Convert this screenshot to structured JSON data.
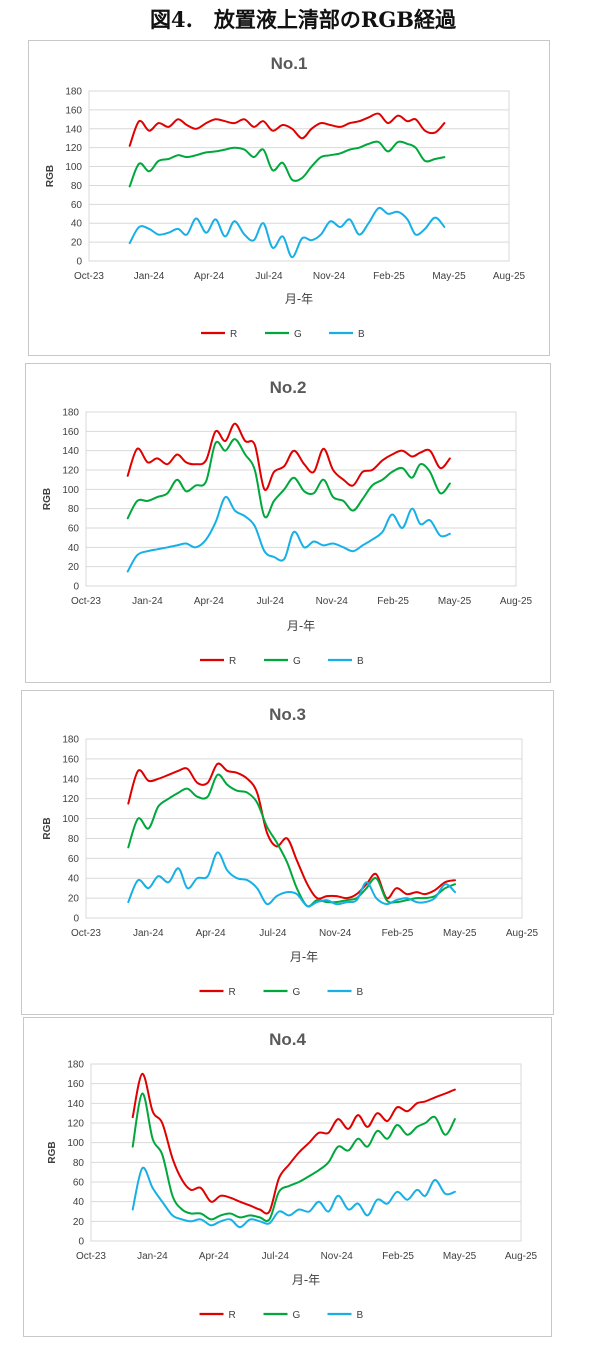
{
  "figure": {
    "title": "図4.　放置液上清部のRGB経過"
  },
  "colors": {
    "R": "#e00000",
    "G": "#00a83c",
    "B": "#17b0e6"
  },
  "chart_data": [
    {
      "type": "line",
      "title": "No.1",
      "xlabel": "月-年",
      "ylabel": "RGB",
      "ylim": [
        0,
        180
      ],
      "yticks": [
        0,
        20,
        40,
        60,
        80,
        100,
        120,
        140,
        160,
        180
      ],
      "xlim": [
        "2023-10-01",
        "2025-08-01"
      ],
      "xticks": [
        "Oct-23",
        "Jan-24",
        "Apr-24",
        "Jul-24",
        "Nov-24",
        "Feb-25",
        "May-25",
        "Aug-25"
      ],
      "grid": true,
      "legend": "bottom",
      "x": [
        "2023-12-05",
        "2023-12-20",
        "2024-01-05",
        "2024-01-20",
        "2024-02-05",
        "2024-02-20",
        "2024-03-05",
        "2024-03-20",
        "2024-04-05",
        "2024-04-20",
        "2024-05-05",
        "2024-05-20",
        "2024-06-05",
        "2024-06-20",
        "2024-07-05",
        "2024-07-20",
        "2024-08-05",
        "2024-08-20",
        "2024-09-05",
        "2024-09-20",
        "2024-10-05",
        "2024-10-20",
        "2024-11-05",
        "2024-11-20",
        "2024-12-05",
        "2024-12-20",
        "2025-01-05",
        "2025-01-20",
        "2025-02-05",
        "2025-02-20",
        "2025-03-05",
        "2025-03-20",
        "2025-04-05",
        "2025-04-20"
      ],
      "series": [
        {
          "name": "R",
          "values": [
            122,
            148,
            138,
            146,
            142,
            150,
            144,
            140,
            146,
            150,
            148,
            146,
            150,
            142,
            148,
            138,
            144,
            140,
            130,
            140,
            146,
            144,
            142,
            146,
            148,
            152,
            156,
            146,
            154,
            148,
            150,
            138,
            136,
            146
          ]
        },
        {
          "name": "G",
          "values": [
            79,
            103,
            95,
            106,
            108,
            112,
            110,
            112,
            115,
            116,
            118,
            120,
            118,
            110,
            118,
            96,
            104,
            86,
            88,
            100,
            110,
            112,
            114,
            118,
            120,
            124,
            126,
            116,
            126,
            124,
            120,
            106,
            108,
            110
          ]
        },
        {
          "name": "B",
          "values": [
            19,
            36,
            34,
            28,
            30,
            34,
            28,
            45,
            30,
            44,
            26,
            42,
            28,
            22,
            40,
            14,
            26,
            4,
            24,
            22,
            28,
            42,
            36,
            44,
            28,
            40,
            56,
            50,
            52,
            44,
            28,
            34,
            46,
            36
          ]
        }
      ]
    },
    {
      "type": "line",
      "title": "No.2",
      "xlabel": "月-年",
      "ylabel": "RGB",
      "ylim": [
        0,
        180
      ],
      "yticks": [
        0,
        20,
        40,
        60,
        80,
        100,
        120,
        140,
        160,
        180
      ],
      "xlim": [
        "2023-10-01",
        "2025-08-01"
      ],
      "xticks": [
        "Oct-23",
        "Jan-24",
        "Apr-24",
        "Jul-24",
        "Nov-24",
        "Feb-25",
        "May-25",
        "Aug-25"
      ],
      "grid": true,
      "legend": "bottom",
      "x": [
        "2023-12-05",
        "2023-12-20",
        "2024-01-05",
        "2024-01-20",
        "2024-02-05",
        "2024-02-20",
        "2024-03-05",
        "2024-03-20",
        "2024-04-05",
        "2024-04-20",
        "2024-05-05",
        "2024-05-20",
        "2024-06-05",
        "2024-06-20",
        "2024-07-05",
        "2024-07-20",
        "2024-08-05",
        "2024-08-20",
        "2024-09-05",
        "2024-09-20",
        "2024-10-05",
        "2024-10-20",
        "2024-11-05",
        "2024-11-20",
        "2024-12-05",
        "2024-12-20",
        "2025-01-05",
        "2025-01-20",
        "2025-02-05",
        "2025-02-20",
        "2025-03-05",
        "2025-03-20",
        "2025-04-05",
        "2025-04-20"
      ],
      "series": [
        {
          "name": "R",
          "values": [
            114,
            142,
            128,
            132,
            126,
            136,
            128,
            126,
            130,
            160,
            150,
            168,
            150,
            146,
            100,
            118,
            124,
            140,
            126,
            118,
            142,
            120,
            110,
            104,
            118,
            120,
            130,
            136,
            140,
            134,
            138,
            140,
            122,
            132
          ]
        },
        {
          "name": "G",
          "values": [
            70,
            88,
            88,
            92,
            96,
            110,
            98,
            104,
            108,
            148,
            140,
            152,
            136,
            120,
            72,
            88,
            100,
            112,
            98,
            96,
            110,
            92,
            88,
            78,
            90,
            104,
            110,
            118,
            122,
            112,
            126,
            118,
            96,
            106
          ]
        },
        {
          "name": "B",
          "values": [
            15,
            32,
            36,
            38,
            40,
            42,
            44,
            40,
            48,
            66,
            92,
            78,
            72,
            62,
            36,
            30,
            28,
            56,
            40,
            46,
            42,
            44,
            40,
            36,
            42,
            48,
            56,
            74,
            60,
            80,
            64,
            68,
            52,
            54
          ]
        }
      ]
    },
    {
      "type": "line",
      "title": "No.3",
      "xlabel": "月-年",
      "ylabel": "RGB",
      "ylim": [
        0,
        180
      ],
      "yticks": [
        0,
        20,
        40,
        60,
        80,
        100,
        120,
        140,
        160,
        180
      ],
      "xlim": [
        "2023-10-01",
        "2025-08-01"
      ],
      "xticks": [
        "Oct-23",
        "Jan-24",
        "Apr-24",
        "Jul-24",
        "Nov-24",
        "Feb-25",
        "May-25",
        "Aug-25"
      ],
      "grid": true,
      "legend": "bottom",
      "x": [
        "2023-12-05",
        "2023-12-20",
        "2024-01-05",
        "2024-01-20",
        "2024-02-05",
        "2024-02-20",
        "2024-03-05",
        "2024-03-20",
        "2024-04-05",
        "2024-04-20",
        "2024-05-05",
        "2024-05-20",
        "2024-06-05",
        "2024-06-20",
        "2024-07-05",
        "2024-07-20",
        "2024-08-05",
        "2024-08-20",
        "2024-09-05",
        "2024-09-20",
        "2024-10-05",
        "2024-10-20",
        "2024-11-05",
        "2024-11-20",
        "2024-12-05",
        "2024-12-20",
        "2025-01-05",
        "2025-01-20",
        "2025-02-05",
        "2025-02-20",
        "2025-03-05",
        "2025-03-20",
        "2025-04-05",
        "2025-04-20"
      ],
      "series": [
        {
          "name": "R",
          "values": [
            115,
            148,
            138,
            140,
            144,
            148,
            150,
            136,
            136,
            155,
            148,
            146,
            140,
            126,
            86,
            72,
            80,
            58,
            34,
            20,
            22,
            22,
            20,
            24,
            34,
            44,
            20,
            30,
            24,
            26,
            24,
            28,
            36,
            38
          ]
        },
        {
          "name": "G",
          "values": [
            71,
            100,
            90,
            112,
            120,
            126,
            130,
            122,
            122,
            144,
            134,
            128,
            126,
            116,
            92,
            76,
            56,
            30,
            12,
            18,
            16,
            16,
            18,
            20,
            30,
            40,
            18,
            16,
            18,
            20,
            20,
            22,
            30,
            34
          ]
        },
        {
          "name": "B",
          "values": [
            16,
            38,
            30,
            42,
            36,
            50,
            30,
            40,
            42,
            66,
            48,
            40,
            38,
            30,
            14,
            22,
            26,
            24,
            12,
            16,
            18,
            14,
            16,
            18,
            36,
            20,
            14,
            18,
            20,
            16,
            16,
            20,
            34,
            26
          ]
        }
      ]
    },
    {
      "type": "line",
      "title": "No.4",
      "xlabel": "月-年",
      "ylabel": "RGB",
      "ylim": [
        0,
        180
      ],
      "yticks": [
        0,
        20,
        40,
        60,
        80,
        100,
        120,
        140,
        160,
        180
      ],
      "xlim": [
        "2023-10-01",
        "2025-08-01"
      ],
      "xticks": [
        "Oct-23",
        "Jan-24",
        "Apr-24",
        "Jul-24",
        "Nov-24",
        "Feb-25",
        "May-25",
        "Aug-25"
      ],
      "grid": true,
      "legend": "bottom",
      "x": [
        "2023-12-05",
        "2023-12-20",
        "2024-01-05",
        "2024-01-20",
        "2024-02-05",
        "2024-02-20",
        "2024-03-05",
        "2024-03-20",
        "2024-04-05",
        "2024-04-20",
        "2024-05-05",
        "2024-05-20",
        "2024-06-05",
        "2024-06-20",
        "2024-07-05",
        "2024-07-20",
        "2024-08-05",
        "2024-08-20",
        "2024-09-05",
        "2024-09-20",
        "2024-10-05",
        "2024-10-20",
        "2024-11-05",
        "2024-11-20",
        "2024-12-05",
        "2024-12-20",
        "2025-01-05",
        "2025-01-20",
        "2025-02-05",
        "2025-02-20",
        "2025-03-05",
        "2025-03-20",
        "2025-04-05",
        "2025-04-20"
      ],
      "series": [
        {
          "name": "R",
          "values": [
            126,
            170,
            132,
            120,
            84,
            62,
            52,
            54,
            40,
            46,
            44,
            40,
            36,
            32,
            30,
            64,
            78,
            90,
            100,
            110,
            110,
            124,
            114,
            128,
            116,
            130,
            122,
            136,
            132,
            140,
            142,
            146,
            150,
            154
          ]
        },
        {
          "name": "G",
          "values": [
            96,
            150,
            104,
            88,
            46,
            32,
            28,
            28,
            22,
            26,
            28,
            24,
            26,
            24,
            22,
            50,
            56,
            60,
            66,
            72,
            80,
            96,
            92,
            104,
            96,
            112,
            104,
            118,
            108,
            116,
            120,
            126,
            108,
            124
          ]
        },
        {
          "name": "B",
          "values": [
            32,
            74,
            54,
            40,
            26,
            22,
            20,
            22,
            16,
            20,
            22,
            14,
            22,
            20,
            18,
            30,
            26,
            32,
            30,
            40,
            30,
            46,
            32,
            38,
            26,
            42,
            38,
            50,
            42,
            52,
            46,
            62,
            48,
            50
          ]
        }
      ]
    }
  ]
}
